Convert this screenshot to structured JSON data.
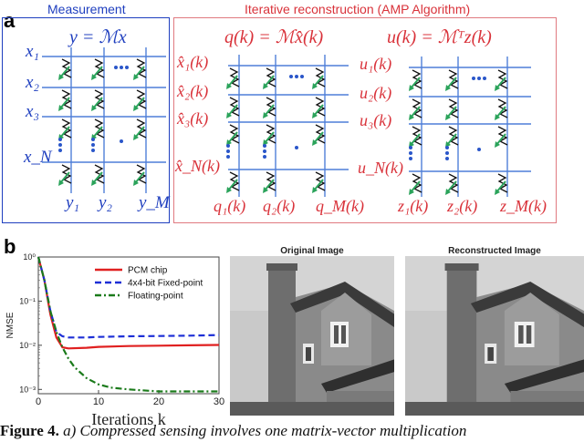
{
  "panel_a": {
    "label": "a",
    "measurement": {
      "title": "Measurement",
      "equation": "y = ℳx",
      "row_labels": [
        "x₁",
        "x₂",
        "x₃",
        "x_N"
      ],
      "col_labels": [
        "y₁",
        "y₂",
        "y_M"
      ]
    },
    "reconstruction": {
      "title": "Iterative reconstruction (AMP Algorithm)",
      "left_equation": "q(k) = ℳx̂(k)",
      "left_row_labels": [
        "x̂₁(k)",
        "x̂₂(k)",
        "x̂₃(k)",
        "x̂_N(k)"
      ],
      "left_col_labels": [
        "q₁(k)",
        "q₂(k)",
        "q_M(k)"
      ],
      "right_equation": "u(k) = ℳᵀz(k)",
      "right_row_labels": [
        "u₁(k)",
        "u₂(k)",
        "u₃(k)",
        "u_N(k)"
      ],
      "right_col_labels": [
        "z₁(k)",
        "z₂(k)",
        "z_M(k)"
      ]
    },
    "colors": {
      "measurement": "#1f3fbf",
      "reconstruction": "#d9323a",
      "arrows": "#2aa35a"
    }
  },
  "panel_b": {
    "label": "b",
    "original_title": "Original Image",
    "reconstructed_title": "Reconstructed Image"
  },
  "chart_data": {
    "type": "line",
    "title": "",
    "xlabel": "Iterations k",
    "ylabel": "NMSE",
    "xlim": [
      0,
      30
    ],
    "ylim": [
      0.0008,
      1
    ],
    "yscale": "log",
    "x_ticks": [
      "0",
      "10",
      "20",
      "30"
    ],
    "y_ticks": [
      "10⁰",
      "10⁻¹",
      "10⁻²",
      "10⁻³"
    ],
    "legend_position": "top-right",
    "series": [
      {
        "name": "PCM chip",
        "color": "#e02020",
        "style": "solid",
        "x": [
          0,
          1,
          2,
          3,
          4,
          5,
          8,
          10,
          15,
          20,
          25,
          30
        ],
        "y": [
          1,
          0.3,
          0.05,
          0.015,
          0.009,
          0.0085,
          0.0088,
          0.0092,
          0.0096,
          0.0098,
          0.01,
          0.0102
        ]
      },
      {
        "name": "4x4-bit Fixed-point",
        "color": "#1d2fd6",
        "style": "dashed",
        "x": [
          0,
          1,
          2,
          3,
          4,
          5,
          8,
          10,
          15,
          20,
          25,
          30
        ],
        "y": [
          1,
          0.3,
          0.06,
          0.02,
          0.016,
          0.015,
          0.015,
          0.0155,
          0.016,
          0.0162,
          0.0165,
          0.017
        ]
      },
      {
        "name": "Floating-point",
        "color": "#1a7a1a",
        "style": "dashdot",
        "x": [
          0,
          1,
          2,
          3,
          4,
          5,
          6,
          8,
          10,
          12,
          15,
          20,
          25,
          30
        ],
        "y": [
          1,
          0.3,
          0.06,
          0.02,
          0.009,
          0.005,
          0.0032,
          0.0018,
          0.0013,
          0.0011,
          0.001,
          0.0009,
          0.0009,
          0.0009
        ]
      }
    ]
  },
  "caption": {
    "prefix": "Figure 4.",
    "text": " a) Compressed sensing involves one matrix-vector multiplication"
  }
}
